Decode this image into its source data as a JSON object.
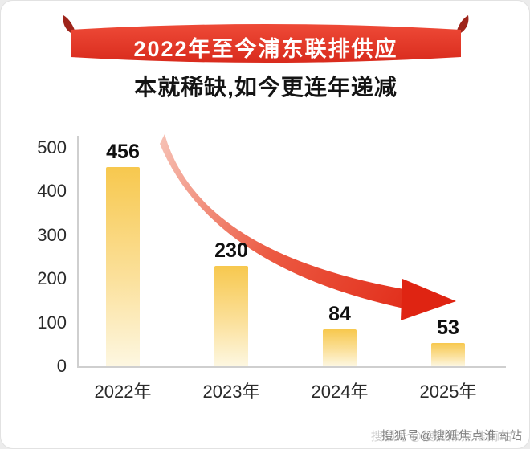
{
  "banner": {
    "title": "2022年至今浦东联排供应"
  },
  "subtitle": "本就稀缺,如今更连年递减",
  "chart_data": {
    "type": "bar",
    "title": "2022年至今浦东联排供应",
    "subtitle": "本就稀缺,如今更连年递减",
    "categories": [
      "2022年",
      "2023年",
      "2024年",
      "2025年"
    ],
    "values": [
      456,
      230,
      84,
      53
    ],
    "xlabel": "",
    "ylabel": "",
    "ylim": [
      0,
      500
    ],
    "yticks": [
      500,
      400,
      300,
      200,
      100,
      0
    ],
    "grid": false,
    "legend": false,
    "bar_color_top": "#f7c84e",
    "bar_color_mid": "#fbe09a",
    "bar_color_bottom": "#fdf7e1",
    "annotation": "red curved downward trend arrow from first bar toward last bar"
  },
  "colors": {
    "banner_red": "#e23a2d",
    "banner_fold_red": "#9e241a",
    "arrow_red": "#df2412"
  },
  "watermark": "搜狐号@搜狐焦点淮南站"
}
